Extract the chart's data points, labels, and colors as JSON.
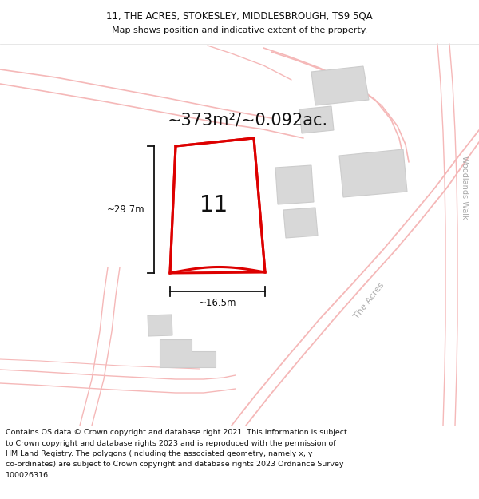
{
  "title_line1": "11, THE ACRES, STOKESLEY, MIDDLESBROUGH, TS9 5QA",
  "title_line2": "Map shows position and indicative extent of the property.",
  "area_label": "~373m²/~0.092ac.",
  "width_label": "~16.5m",
  "height_label": "~29.7m",
  "number_label": "11",
  "footer_lines": [
    "Contains OS data © Crown copyright and database right 2021. This information is subject",
    "to Crown copyright and database rights 2023 and is reproduced with the permission of",
    "HM Land Registry. The polygons (including the associated geometry, namely x, y",
    "co-ordinates) are subject to Crown copyright and database rights 2023 Ordnance Survey",
    "100026316."
  ],
  "bg_color": "#ffffff",
  "road_color_light": "#f5b8b8",
  "road_color_medium": "#e88888",
  "building_fill": "#d8d8d8",
  "building_edge": "#cccccc",
  "plot_fill": "#ffffff",
  "plot_edge": "#dd0000",
  "plot_edge_width": 2.2,
  "dim_line_color": "#111111",
  "text_color": "#111111",
  "street_text_color": "#aaaaaa",
  "title_fontsize": 8.5,
  "area_fontsize": 15,
  "number_fontsize": 20,
  "dim_fontsize": 8.5,
  "footer_fontsize": 6.8,
  "woodlands_walk_text": "Woodlands Walk",
  "the_acres_text": "The Acres"
}
